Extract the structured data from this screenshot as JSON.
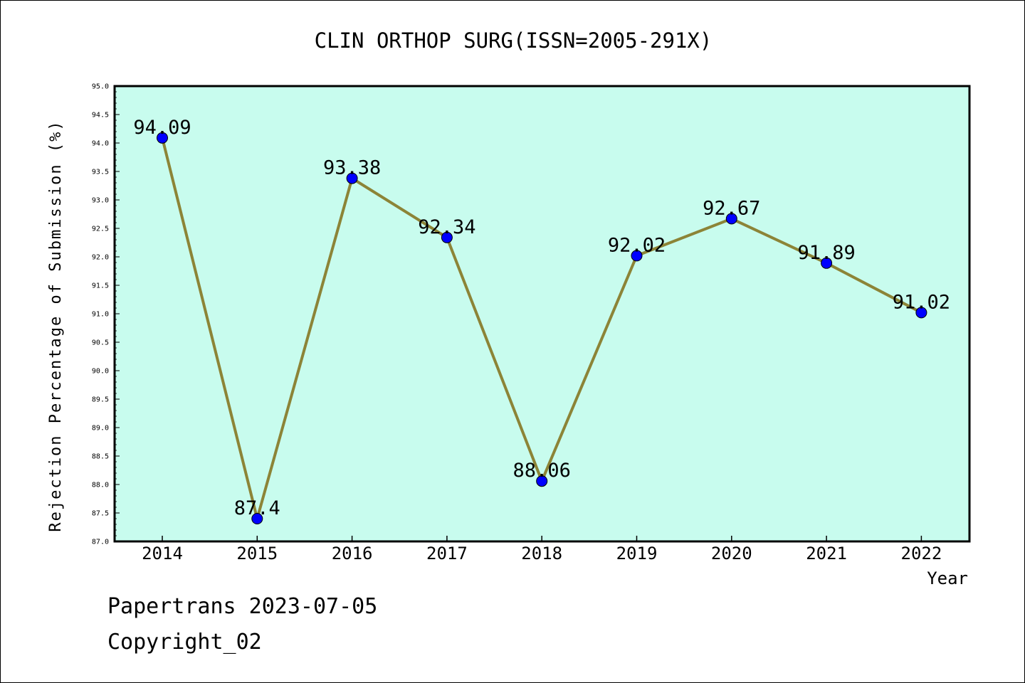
{
  "chart_data": {
    "type": "line",
    "title": "CLIN ORTHOP SURG(ISSN=2005-291X)",
    "xlabel": "Year",
    "ylabel": "Rejection Percentage of Submission (%)",
    "categories": [
      "2014",
      "2015",
      "2016",
      "2017",
      "2018",
      "2019",
      "2020",
      "2021",
      "2022"
    ],
    "series": [
      {
        "values": [
          94.09,
          87.4,
          93.38,
          92.34,
          88.06,
          92.02,
          92.67,
          91.89,
          91.02
        ],
        "labels": [
          "94.09",
          "87.4",
          "93.38",
          "92.34",
          "88.06",
          "92.02",
          "92.67",
          "91.89",
          "91.02"
        ]
      }
    ],
    "ylim": [
      87.0,
      95.0
    ],
    "yticks": [
      "87.0",
      "87.5",
      "88.0",
      "88.5",
      "89.0",
      "89.5",
      "90.0",
      "90.5",
      "91.0",
      "91.5",
      "92.0",
      "92.5",
      "93.0",
      "93.5",
      "94.0",
      "94.5",
      "95.0"
    ],
    "grid": false,
    "colors": {
      "plot_background": "#c8fcee",
      "line": "#8c8437",
      "marker": "#0000ff"
    }
  },
  "footer": {
    "line1": "Papertrans 2023-07-05",
    "line2": "Copyright_02"
  }
}
